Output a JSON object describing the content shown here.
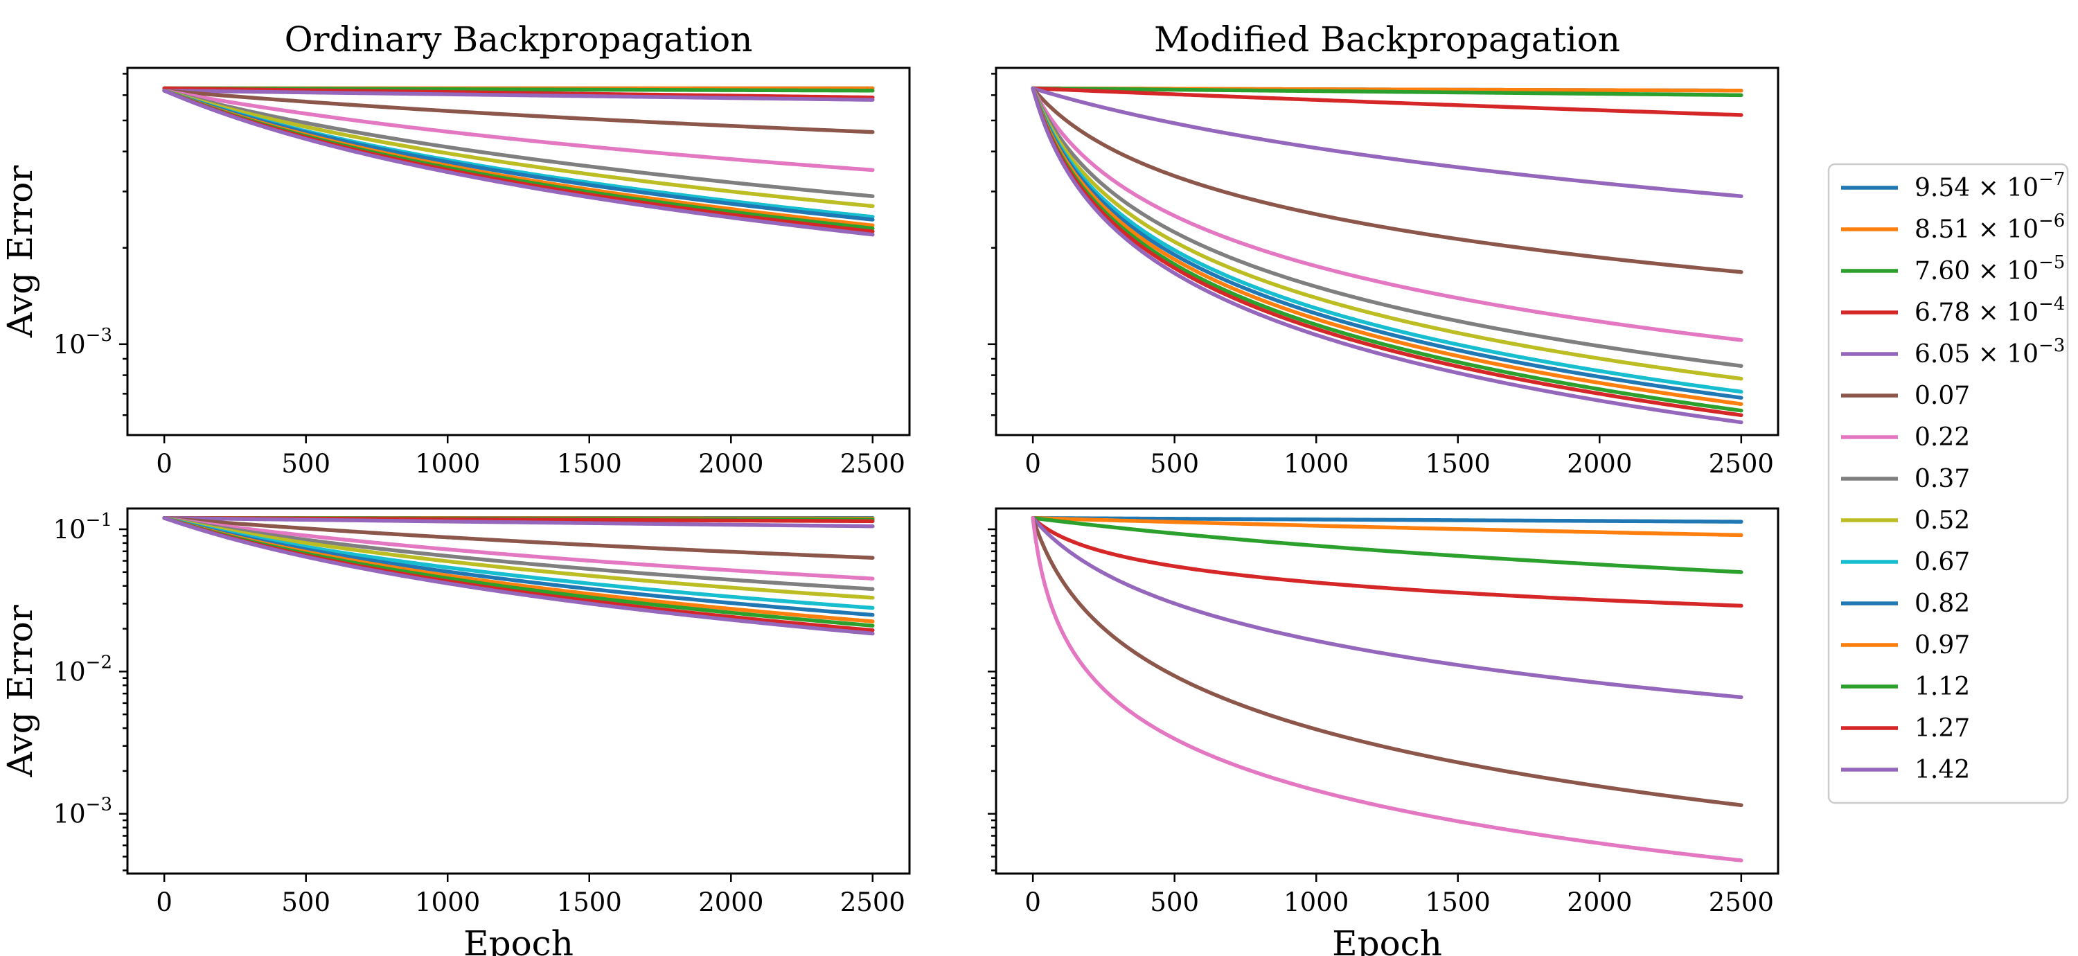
{
  "legend": {
    "placement": "right",
    "entries": [
      {
        "base": "9.54 × 10",
        "exp": "−7",
        "color": "#1f77b4"
      },
      {
        "base": "8.51 × 10",
        "exp": "−6",
        "color": "#ff7f0e"
      },
      {
        "base": "7.60 × 10",
        "exp": "−5",
        "color": "#2ca02c"
      },
      {
        "base": "6.78 × 10",
        "exp": "−4",
        "color": "#d62728"
      },
      {
        "base": "6.05 × 10",
        "exp": "−3",
        "color": "#9467bd"
      },
      {
        "base": "0.07",
        "exp": "",
        "color": "#8c564b"
      },
      {
        "base": "0.22",
        "exp": "",
        "color": "#e377c2"
      },
      {
        "base": "0.37",
        "exp": "",
        "color": "#7f7f7f"
      },
      {
        "base": "0.52",
        "exp": "",
        "color": "#bcbd22"
      },
      {
        "base": "0.67",
        "exp": "",
        "color": "#17becf"
      },
      {
        "base": "0.82",
        "exp": "",
        "color": "#1f77b4"
      },
      {
        "base": "0.97",
        "exp": "",
        "color": "#ff7f0e"
      },
      {
        "base": "1.12",
        "exp": "",
        "color": "#2ca02c"
      },
      {
        "base": "1.27",
        "exp": "",
        "color": "#d62728"
      },
      {
        "base": "1.42",
        "exp": "",
        "color": "#9467bd"
      }
    ]
  },
  "chart_data": [
    {
      "type": "line",
      "title": "Ordinary Backpropagation",
      "xlabel": "",
      "ylabel": "Avg Error",
      "yscale": "log",
      "xlim": [
        -130,
        2630
      ],
      "ylim": [
        0.00052,
        0.0073
      ],
      "xticks": [
        "0",
        "500",
        "1000",
        "1500",
        "2000",
        "2500"
      ],
      "yticks": [
        {
          "value": 0.001,
          "base": "10",
          "exp": "−3"
        }
      ],
      "grid": false,
      "series": [
        {
          "label_index": 0,
          "x": [
            0,
            2500
          ],
          "y": [
            0.0063,
            0.0063
          ],
          "k": 0
        },
        {
          "label_index": 1,
          "x": [
            0,
            2500
          ],
          "y": [
            0.0063,
            0.0063
          ],
          "k": 0
        },
        {
          "label_index": 2,
          "x": [
            0,
            2500
          ],
          "y": [
            0.0063,
            0.0062
          ],
          "k": 0
        },
        {
          "label_index": 3,
          "x": [
            0,
            2500
          ],
          "y": [
            0.0063,
            0.0059
          ],
          "k": 0
        },
        {
          "label_index": 4,
          "x": [
            0,
            2500
          ],
          "y": [
            0.0062,
            0.0058
          ],
          "k": 0
        },
        {
          "label_index": 5,
          "x": [
            0,
            2500
          ],
          "y": [
            0.0062,
            0.0046
          ],
          "k": 1.1
        },
        {
          "label_index": 6,
          "x": [
            0,
            2500
          ],
          "y": [
            0.0062,
            0.0035
          ],
          "k": 1.6
        },
        {
          "label_index": 7,
          "x": [
            0,
            2500
          ],
          "y": [
            0.0062,
            0.0029
          ],
          "k": 2.0
        },
        {
          "label_index": 8,
          "x": [
            0,
            2500
          ],
          "y": [
            0.0062,
            0.0027
          ],
          "k": 2.2
        },
        {
          "label_index": 9,
          "x": [
            0,
            2500
          ],
          "y": [
            0.0062,
            0.0025
          ],
          "k": 2.4
        },
        {
          "label_index": 10,
          "x": [
            0,
            2500
          ],
          "y": [
            0.0062,
            0.00245
          ],
          "k": 2.5
        },
        {
          "label_index": 11,
          "x": [
            0,
            2500
          ],
          "y": [
            0.0062,
            0.00235
          ],
          "k": 2.6
        },
        {
          "label_index": 12,
          "x": [
            0,
            2500
          ],
          "y": [
            0.0062,
            0.0023
          ],
          "k": 2.7
        },
        {
          "label_index": 13,
          "x": [
            0,
            2500
          ],
          "y": [
            0.0062,
            0.00225
          ],
          "k": 2.8
        },
        {
          "label_index": 14,
          "x": [
            0,
            2500
          ],
          "y": [
            0.0062,
            0.0022
          ],
          "k": 2.9
        }
      ]
    },
    {
      "type": "line",
      "title": "Modified Backpropagation",
      "xlabel": "",
      "ylabel": "",
      "yscale": "log",
      "xlim": [
        -130,
        2630
      ],
      "ylim": [
        0.00052,
        0.0073
      ],
      "xticks": [
        "0",
        "500",
        "1000",
        "1500",
        "2000",
        "2500"
      ],
      "yticks": [
        {
          "value": 0.001,
          "base": "",
          "exp": ""
        }
      ],
      "grid": false,
      "series": [
        {
          "label_index": 0,
          "x": [
            0,
            2500
          ],
          "y": [
            0.0063,
            0.0062
          ],
          "k": 0
        },
        {
          "label_index": 1,
          "x": [
            0,
            2500
          ],
          "y": [
            0.0063,
            0.0062
          ],
          "k": 0
        },
        {
          "label_index": 2,
          "x": [
            0,
            2500
          ],
          "y": [
            0.0063,
            0.006
          ],
          "k": 0
        },
        {
          "label_index": 3,
          "x": [
            0,
            2500
          ],
          "y": [
            0.0063,
            0.0052
          ],
          "k": 0.3
        },
        {
          "label_index": 4,
          "x": [
            0,
            2500
          ],
          "y": [
            0.0063,
            0.0029
          ],
          "k": 2.5
        },
        {
          "label_index": 5,
          "x": [
            0,
            2500
          ],
          "y": [
            0.0063,
            0.00168
          ],
          "k": 12
        },
        {
          "label_index": 6,
          "x": [
            0,
            2500
          ],
          "y": [
            0.0063,
            0.00103
          ],
          "k": 16
        },
        {
          "label_index": 7,
          "x": [
            0,
            2500
          ],
          "y": [
            0.0063,
            0.000855
          ],
          "k": 18
        },
        {
          "label_index": 8,
          "x": [
            0,
            2500
          ],
          "y": [
            0.0063,
            0.00078
          ],
          "k": 20
        },
        {
          "label_index": 9,
          "x": [
            0,
            2500
          ],
          "y": [
            0.0063,
            0.00071
          ],
          "k": 21
        },
        {
          "label_index": 10,
          "x": [
            0,
            2500
          ],
          "y": [
            0.0063,
            0.00068
          ],
          "k": 22
        },
        {
          "label_index": 11,
          "x": [
            0,
            2500
          ],
          "y": [
            0.0063,
            0.00065
          ],
          "k": 23
        },
        {
          "label_index": 12,
          "x": [
            0,
            2500
          ],
          "y": [
            0.0063,
            0.00062
          ],
          "k": 24
        },
        {
          "label_index": 13,
          "x": [
            0,
            2500
          ],
          "y": [
            0.0063,
            0.0006
          ],
          "k": 25
        },
        {
          "label_index": 14,
          "x": [
            0,
            2500
          ],
          "y": [
            0.0063,
            0.00057
          ],
          "k": 26
        }
      ]
    },
    {
      "type": "line",
      "title": "",
      "xlabel": "Epoch",
      "ylabel": "Avg Error",
      "yscale": "log",
      "xlim": [
        -130,
        2630
      ],
      "ylim": [
        0.00038,
        0.14
      ],
      "xticks": [
        "0",
        "500",
        "1000",
        "1500",
        "2000",
        "2500"
      ],
      "yticks": [
        {
          "value": 0.1,
          "base": "10",
          "exp": "−1"
        },
        {
          "value": 0.01,
          "base": "10",
          "exp": "−2"
        },
        {
          "value": 0.001,
          "base": "10",
          "exp": "−3"
        }
      ],
      "grid": false,
      "series": [
        {
          "label_index": 0,
          "x": [
            0,
            2500
          ],
          "y": [
            0.12,
            0.12
          ],
          "k": 0
        },
        {
          "label_index": 1,
          "x": [
            0,
            2500
          ],
          "y": [
            0.12,
            0.119
          ],
          "k": 0
        },
        {
          "label_index": 2,
          "x": [
            0,
            2500
          ],
          "y": [
            0.12,
            0.117
          ],
          "k": 0
        },
        {
          "label_index": 3,
          "x": [
            0,
            2500
          ],
          "y": [
            0.12,
            0.114
          ],
          "k": 0
        },
        {
          "label_index": 4,
          "x": [
            0,
            2500
          ],
          "y": [
            0.12,
            0.105
          ],
          "k": 0.2
        },
        {
          "label_index": 5,
          "x": [
            0,
            2500
          ],
          "y": [
            0.12,
            0.063
          ],
          "k": 1.0
        },
        {
          "label_index": 6,
          "x": [
            0,
            2500
          ],
          "y": [
            0.12,
            0.045
          ],
          "k": 1.6
        },
        {
          "label_index": 7,
          "x": [
            0,
            2500
          ],
          "y": [
            0.12,
            0.038
          ],
          "k": 2.0
        },
        {
          "label_index": 8,
          "x": [
            0,
            2500
          ],
          "y": [
            0.12,
            0.033
          ],
          "k": 2.2
        },
        {
          "label_index": 9,
          "x": [
            0,
            2500
          ],
          "y": [
            0.12,
            0.028
          ],
          "k": 2.4
        },
        {
          "label_index": 10,
          "x": [
            0,
            2500
          ],
          "y": [
            0.12,
            0.025
          ],
          "k": 2.5
        },
        {
          "label_index": 11,
          "x": [
            0,
            2500
          ],
          "y": [
            0.12,
            0.0225
          ],
          "k": 2.6
        },
        {
          "label_index": 12,
          "x": [
            0,
            2500
          ],
          "y": [
            0.12,
            0.021
          ],
          "k": 2.7
        },
        {
          "label_index": 13,
          "x": [
            0,
            2500
          ],
          "y": [
            0.12,
            0.0195
          ],
          "k": 2.8
        },
        {
          "label_index": 14,
          "x": [
            0,
            2500
          ],
          "y": [
            0.12,
            0.0185
          ],
          "k": 2.9
        }
      ]
    },
    {
      "type": "line",
      "title": "",
      "xlabel": "Epoch",
      "ylabel": "",
      "yscale": "log",
      "xlim": [
        -130,
        2630
      ],
      "ylim": [
        0.00038,
        0.14
      ],
      "xticks": [
        "0",
        "500",
        "1000",
        "1500",
        "2000",
        "2500"
      ],
      "yticks": [
        {
          "value": 0.1,
          "base": "",
          "exp": ""
        },
        {
          "value": 0.01,
          "base": "",
          "exp": ""
        },
        {
          "value": 0.001,
          "base": "",
          "exp": ""
        }
      ],
      "grid": false,
      "series": [
        {
          "label_index": 0,
          "x": [
            0,
            2500
          ],
          "y": [
            0.12,
            0.113
          ],
          "k": 0
        },
        {
          "label_index": 1,
          "x": [
            0,
            2500
          ],
          "y": [
            0.12,
            0.091
          ],
          "k": 0.5
        },
        {
          "label_index": 2,
          "x": [
            0,
            2500
          ],
          "y": [
            0.12,
            0.05
          ],
          "k": 1.5
        },
        {
          "label_index": 3,
          "x": [
            0,
            2500
          ],
          "y": [
            0.12,
            0.029
          ],
          "k": 25
        },
        {
          "label_index": 4,
          "x": [
            0,
            2500
          ],
          "y": [
            0.12,
            0.0066
          ],
          "k": 12
        },
        {
          "label_index": 5,
          "x": [
            0,
            2500
          ],
          "y": [
            0.12,
            0.00115
          ],
          "k": 25
        },
        {
          "label_index": 6,
          "x": [
            0,
            2500
          ],
          "y": [
            0.12,
            0.00047
          ],
          "k": 80
        }
      ]
    }
  ]
}
